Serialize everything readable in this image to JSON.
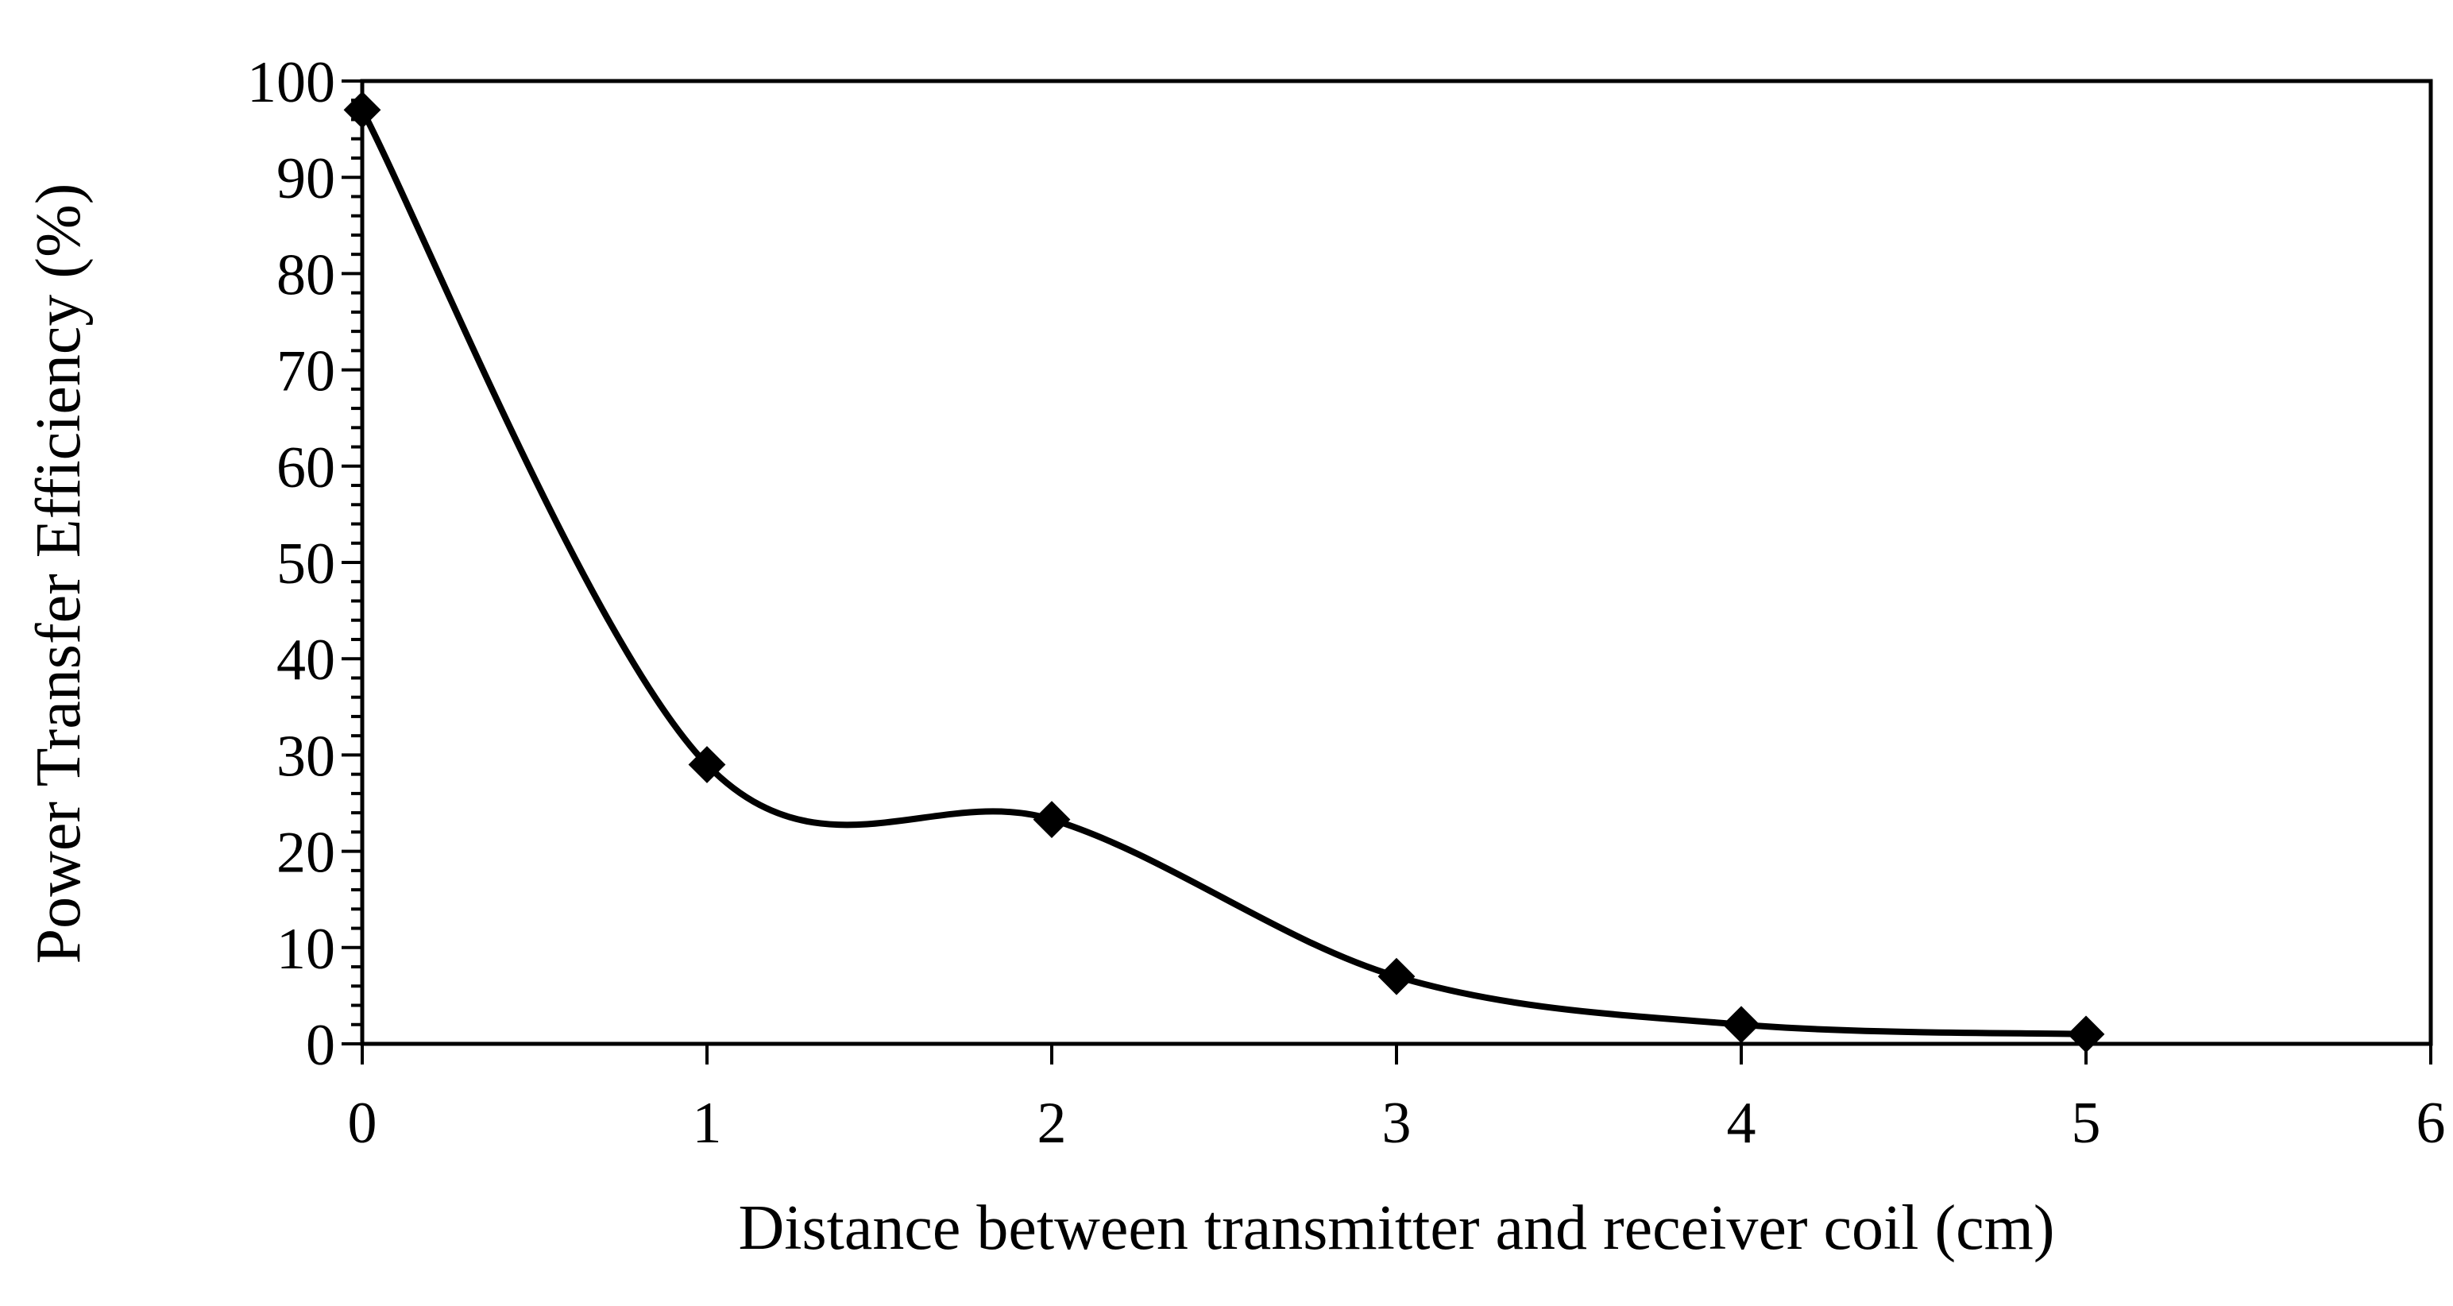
{
  "chart_data": {
    "type": "line",
    "title": "",
    "xlabel": "Distance between transmitter and receiver coil (cm)",
    "ylabel": "Power Transfer Efficiency (%)",
    "xlim": [
      0,
      6
    ],
    "ylim": [
      0,
      100
    ],
    "xticks": [
      0,
      1,
      2,
      3,
      4,
      5,
      6
    ],
    "yticks": [
      0,
      10,
      20,
      30,
      40,
      50,
      60,
      70,
      80,
      90,
      100
    ],
    "y_minor_step": 2,
    "grid": false,
    "legend": "none",
    "series": [
      {
        "x": [
          0,
          1,
          2,
          3,
          4,
          5
        ],
        "y": [
          97,
          29,
          23.3,
          7,
          2,
          1
        ],
        "marker": "diamond",
        "smooth": true,
        "color": "#000000"
      }
    ]
  }
}
